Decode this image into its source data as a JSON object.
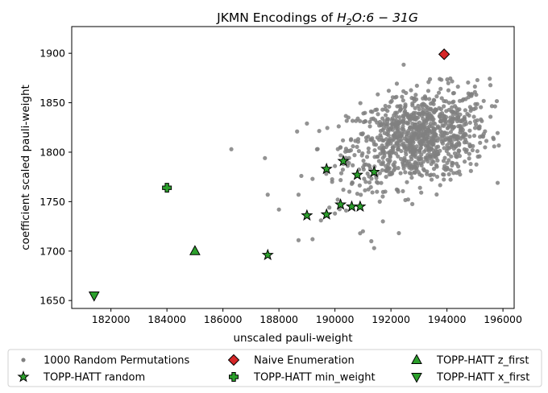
{
  "chart_data": {
    "type": "scatter",
    "title_prefix": "JKMN Encodings of ",
    "title_math": {
      "base": "H",
      "sub": "2",
      "rest": "O:6 − 31G"
    },
    "xlabel": "unscaled pauli-weight",
    "ylabel": "coefficient scaled pauli-weight",
    "xlim": [
      180600,
      196400
    ],
    "ylim": [
      1642,
      1927
    ],
    "xticks": [
      182000,
      184000,
      186000,
      188000,
      190000,
      192000,
      194000,
      196000
    ],
    "yticks": [
      1650,
      1700,
      1750,
      1800,
      1850,
      1900
    ],
    "grid": false,
    "legend_placement": "below, 3 columns",
    "random_cluster": {
      "count": 1000,
      "center": [
        193000,
        1815
      ],
      "std": [
        1250,
        24
      ],
      "correlation": 0.25
    },
    "series": [
      {
        "name": "1000 Random Permutations",
        "marker": "dot",
        "color": "#808080",
        "points": [
          [
            186300,
            1803
          ],
          [
            187500,
            1794
          ],
          [
            187600,
            1757
          ],
          [
            188000,
            1742
          ],
          [
            188700,
            1757
          ],
          [
            188800,
            1776
          ],
          [
            189000,
            1829
          ],
          [
            189200,
            1773
          ],
          [
            188700,
            1711
          ],
          [
            189200,
            1712
          ],
          [
            189500,
            1731
          ],
          [
            189800,
            1744
          ],
          [
            190000,
            1738
          ],
          [
            190100,
            1752
          ],
          [
            190300,
            1762
          ],
          [
            189900,
            1770
          ],
          [
            190000,
            1786
          ],
          [
            190500,
            1789
          ],
          [
            190700,
            1797
          ],
          [
            190200,
            1805
          ],
          [
            190600,
            1768
          ],
          [
            190800,
            1758
          ],
          [
            190400,
            1741
          ],
          [
            191000,
            1720
          ],
          [
            190900,
            1718
          ],
          [
            191300,
            1710
          ],
          [
            191400,
            1703
          ],
          [
            191100,
            1770
          ],
          [
            191500,
            1760
          ],
          [
            191600,
            1750
          ],
          [
            191200,
            1800
          ],
          [
            191500,
            1830
          ],
          [
            191700,
            1843
          ]
        ]
      },
      {
        "name": "TOPP-HATT random",
        "marker": "star",
        "color": "#2ca02c",
        "points": [
          [
            187600,
            1696
          ],
          [
            189000,
            1736
          ],
          [
            189700,
            1737
          ],
          [
            189700,
            1783
          ],
          [
            190200,
            1747
          ],
          [
            190300,
            1791
          ],
          [
            190600,
            1745
          ],
          [
            190800,
            1777
          ],
          [
            190900,
            1745
          ],
          [
            191400,
            1780
          ]
        ]
      },
      {
        "name": "Naive Enumeration",
        "marker": "diamond",
        "color": "#d62728",
        "points": [
          [
            193900,
            1899
          ]
        ]
      },
      {
        "name": "TOPP-HATT min_weight",
        "marker": "plus",
        "color": "#2ca02c",
        "points": [
          [
            184000,
            1764
          ]
        ]
      },
      {
        "name": "TOPP-HATT z_first",
        "marker": "triangle-up",
        "color": "#2ca02c",
        "points": [
          [
            185000,
            1700
          ]
        ]
      },
      {
        "name": "TOPP-HATT x_first",
        "marker": "triangle-down",
        "color": "#2ca02c",
        "points": [
          [
            181400,
            1655
          ]
        ]
      }
    ]
  }
}
